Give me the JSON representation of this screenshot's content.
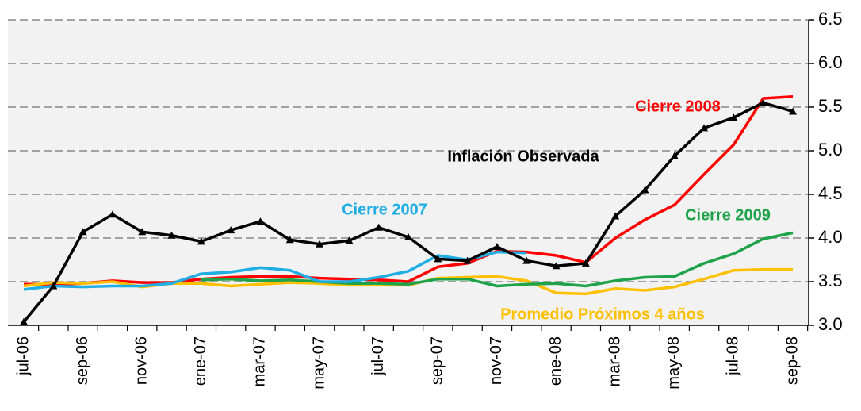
{
  "chart_data": {
    "type": "line",
    "categories": [
      "jul-06",
      null,
      "sep-06",
      null,
      "nov-06",
      null,
      "ene-07",
      null,
      "mar-07",
      null,
      "may-07",
      null,
      "jul-07",
      null,
      "sep-07",
      null,
      "nov-07",
      null,
      "ene-08",
      null,
      "mar-08",
      null,
      "may-08",
      null,
      "jul-08",
      null,
      "sep-08"
    ],
    "ylim": [
      3.0,
      6.5
    ],
    "yticks": [
      {
        "value": 3,
        "label": "3.0"
      },
      3.5,
      {
        "value": 4,
        "label": "4.0"
      },
      4.5,
      {
        "value": 5,
        "label": "5.0"
      },
      5.5,
      {
        "value": 6,
        "label": "6.0"
      },
      6.5
    ],
    "grid": true,
    "series": [
      {
        "name": "Cierre 2008",
        "color": "#ff0000",
        "values": [
          3.47,
          3.47,
          3.48,
          3.51,
          3.49,
          3.49,
          3.53,
          3.55,
          3.56,
          3.56,
          3.54,
          3.53,
          3.52,
          3.5,
          3.67,
          3.71,
          3.85,
          3.84,
          3.8,
          3.72,
          4.0,
          4.21,
          4.38,
          4.73,
          5.07,
          5.6,
          5.62
        ]
      },
      {
        "name": "Promedio Próximos 4 años",
        "color": "#ffc000",
        "values": [
          3.45,
          3.49,
          3.48,
          3.5,
          3.44,
          3.48,
          3.48,
          3.45,
          3.47,
          3.49,
          3.48,
          3.46,
          3.46,
          3.46,
          3.54,
          3.55,
          3.56,
          3.51,
          3.37,
          3.36,
          3.42,
          3.4,
          3.44,
          3.53,
          3.63,
          3.64,
          3.64
        ]
      },
      {
        "name": "Cierre 2009",
        "color": "#1fa34a",
        "values": [
          null,
          null,
          null,
          null,
          null,
          null,
          3.52,
          3.53,
          3.51,
          3.52,
          3.5,
          3.48,
          3.48,
          3.47,
          3.53,
          3.53,
          3.45,
          3.47,
          3.48,
          3.45,
          3.51,
          3.55,
          3.56,
          3.71,
          3.82,
          3.99,
          4.06
        ]
      },
      {
        "name": "Cierre 2007",
        "color": "#1fade4",
        "values": [
          3.41,
          3.45,
          3.44,
          3.45,
          3.45,
          3.48,
          3.59,
          3.61,
          3.66,
          3.63,
          3.5,
          3.5,
          3.55,
          3.62,
          3.8,
          3.75,
          3.84,
          3.83,
          null,
          null,
          null,
          null,
          null,
          null,
          null,
          null,
          null
        ]
      },
      {
        "name": "Inflación Observada",
        "color": "#000000",
        "marker": "triangle",
        "values": [
          3.04,
          3.45,
          4.07,
          4.27,
          4.07,
          4.03,
          3.96,
          4.09,
          4.19,
          3.98,
          3.93,
          3.97,
          4.12,
          4.01,
          3.76,
          3.74,
          3.9,
          3.74,
          3.68,
          3.71,
          4.25,
          4.55,
          4.94,
          5.26,
          5.38,
          5.55,
          5.45
        ]
      }
    ]
  }
}
